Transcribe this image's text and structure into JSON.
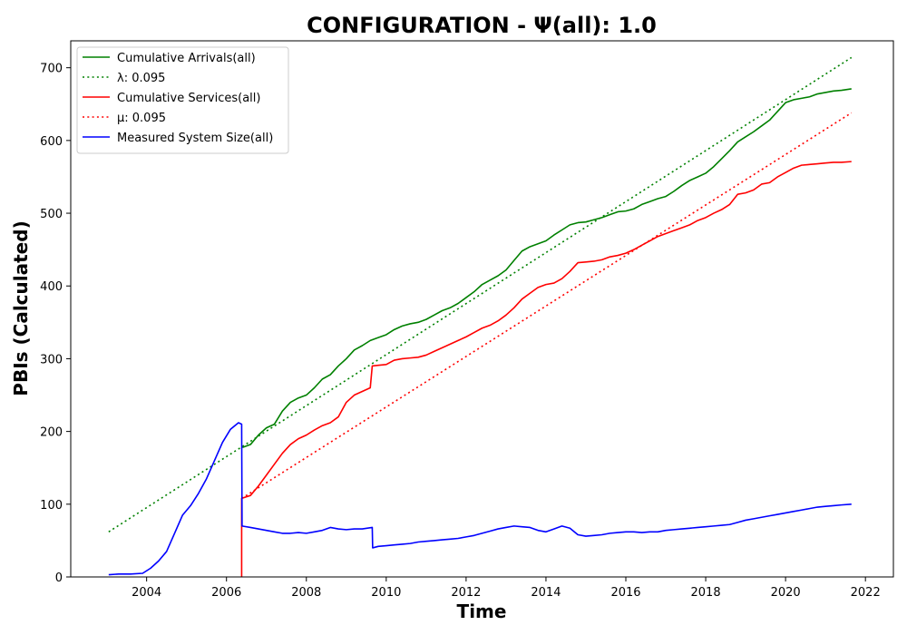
{
  "chart_data": {
    "type": "line",
    "title": "CONFIGURATION -  Ψ(all): 1.0",
    "xlabel": "Time",
    "ylabel": "PBIs (Calculated)",
    "xlim": [
      2002.1,
      2022.7
    ],
    "ylim": [
      0,
      737
    ],
    "x_ticks": [
      2004,
      2006,
      2008,
      2010,
      2012,
      2014,
      2016,
      2018,
      2020,
      2022
    ],
    "y_ticks": [
      0,
      100,
      200,
      300,
      400,
      500,
      600,
      700
    ],
    "grid": false,
    "legend_position": "top-left",
    "series": [
      {
        "name": "Cumulative Arrivals(all)",
        "color": "#008000",
        "style": "solid",
        "points": [
          [
            2006.4,
            178
          ],
          [
            2006.6,
            182
          ],
          [
            2006.8,
            195
          ],
          [
            2007.0,
            205
          ],
          [
            2007.2,
            210
          ],
          [
            2007.4,
            228
          ],
          [
            2007.6,
            240
          ],
          [
            2007.8,
            246
          ],
          [
            2008.0,
            250
          ],
          [
            2008.2,
            260
          ],
          [
            2008.4,
            272
          ],
          [
            2008.6,
            278
          ],
          [
            2008.8,
            290
          ],
          [
            2009.0,
            300
          ],
          [
            2009.2,
            312
          ],
          [
            2009.4,
            318
          ],
          [
            2009.6,
            325
          ],
          [
            2009.8,
            329
          ],
          [
            2010.0,
            333
          ],
          [
            2010.2,
            340
          ],
          [
            2010.4,
            345
          ],
          [
            2010.6,
            348
          ],
          [
            2010.8,
            350
          ],
          [
            2011.0,
            354
          ],
          [
            2011.2,
            360
          ],
          [
            2011.4,
            366
          ],
          [
            2011.6,
            370
          ],
          [
            2011.8,
            376
          ],
          [
            2012.0,
            384
          ],
          [
            2012.2,
            392
          ],
          [
            2012.4,
            402
          ],
          [
            2012.6,
            408
          ],
          [
            2012.8,
            414
          ],
          [
            2013.0,
            422
          ],
          [
            2013.2,
            435
          ],
          [
            2013.4,
            448
          ],
          [
            2013.6,
            454
          ],
          [
            2013.8,
            458
          ],
          [
            2014.0,
            462
          ],
          [
            2014.2,
            470
          ],
          [
            2014.4,
            477
          ],
          [
            2014.6,
            484
          ],
          [
            2014.8,
            487
          ],
          [
            2015.0,
            488
          ],
          [
            2015.2,
            491
          ],
          [
            2015.4,
            494
          ],
          [
            2015.6,
            498
          ],
          [
            2015.8,
            502
          ],
          [
            2016.0,
            503
          ],
          [
            2016.2,
            506
          ],
          [
            2016.4,
            512
          ],
          [
            2016.6,
            516
          ],
          [
            2016.8,
            520
          ],
          [
            2017.0,
            523
          ],
          [
            2017.2,
            530
          ],
          [
            2017.4,
            538
          ],
          [
            2017.6,
            545
          ],
          [
            2017.8,
            550
          ],
          [
            2018.0,
            555
          ],
          [
            2018.2,
            564
          ],
          [
            2018.4,
            575
          ],
          [
            2018.6,
            586
          ],
          [
            2018.8,
            598
          ],
          [
            2019.0,
            605
          ],
          [
            2019.2,
            612
          ],
          [
            2019.4,
            620
          ],
          [
            2019.6,
            628
          ],
          [
            2019.8,
            640
          ],
          [
            2020.0,
            652
          ],
          [
            2020.2,
            656
          ],
          [
            2020.4,
            658
          ],
          [
            2020.6,
            660
          ],
          [
            2020.8,
            664
          ],
          [
            2021.0,
            666
          ],
          [
            2021.2,
            668
          ],
          [
            2021.4,
            669
          ],
          [
            2021.65,
            671
          ]
        ]
      },
      {
        "name": "λ: 0.095",
        "color": "#008000",
        "style": "dotted",
        "points": [
          [
            2003.05,
            62
          ],
          [
            2021.65,
            714
          ]
        ]
      },
      {
        "name": "Cumulative Services(all)",
        "color": "#ff0000",
        "style": "solid",
        "points": [
          [
            2006.38,
            0
          ],
          [
            2006.38,
            108
          ],
          [
            2006.6,
            112
          ],
          [
            2006.8,
            125
          ],
          [
            2007.0,
            140
          ],
          [
            2007.2,
            155
          ],
          [
            2007.4,
            170
          ],
          [
            2007.6,
            182
          ],
          [
            2007.8,
            190
          ],
          [
            2008.0,
            195
          ],
          [
            2008.2,
            202
          ],
          [
            2008.4,
            208
          ],
          [
            2008.6,
            212
          ],
          [
            2008.8,
            220
          ],
          [
            2009.0,
            240
          ],
          [
            2009.2,
            250
          ],
          [
            2009.4,
            255
          ],
          [
            2009.6,
            260
          ],
          [
            2009.65,
            290
          ],
          [
            2009.8,
            291
          ],
          [
            2010.0,
            292
          ],
          [
            2010.2,
            298
          ],
          [
            2010.4,
            300
          ],
          [
            2010.6,
            301
          ],
          [
            2010.8,
            302
          ],
          [
            2011.0,
            305
          ],
          [
            2011.2,
            310
          ],
          [
            2011.4,
            315
          ],
          [
            2011.6,
            320
          ],
          [
            2011.8,
            325
          ],
          [
            2012.0,
            330
          ],
          [
            2012.2,
            336
          ],
          [
            2012.4,
            342
          ],
          [
            2012.6,
            346
          ],
          [
            2012.8,
            352
          ],
          [
            2013.0,
            360
          ],
          [
            2013.2,
            370
          ],
          [
            2013.4,
            382
          ],
          [
            2013.6,
            390
          ],
          [
            2013.8,
            398
          ],
          [
            2014.0,
            402
          ],
          [
            2014.2,
            404
          ],
          [
            2014.4,
            410
          ],
          [
            2014.6,
            420
          ],
          [
            2014.8,
            432
          ],
          [
            2015.0,
            433
          ],
          [
            2015.2,
            434
          ],
          [
            2015.4,
            436
          ],
          [
            2015.6,
            440
          ],
          [
            2015.8,
            442
          ],
          [
            2016.0,
            445
          ],
          [
            2016.2,
            450
          ],
          [
            2016.4,
            456
          ],
          [
            2016.6,
            462
          ],
          [
            2016.8,
            468
          ],
          [
            2017.0,
            472
          ],
          [
            2017.2,
            476
          ],
          [
            2017.4,
            480
          ],
          [
            2017.6,
            484
          ],
          [
            2017.8,
            490
          ],
          [
            2018.0,
            494
          ],
          [
            2018.2,
            500
          ],
          [
            2018.4,
            505
          ],
          [
            2018.6,
            512
          ],
          [
            2018.8,
            526
          ],
          [
            2019.0,
            528
          ],
          [
            2019.2,
            532
          ],
          [
            2019.4,
            540
          ],
          [
            2019.6,
            542
          ],
          [
            2019.8,
            550
          ],
          [
            2020.0,
            556
          ],
          [
            2020.2,
            562
          ],
          [
            2020.4,
            566
          ],
          [
            2020.6,
            567
          ],
          [
            2020.8,
            568
          ],
          [
            2021.0,
            569
          ],
          [
            2021.2,
            570
          ],
          [
            2021.4,
            570
          ],
          [
            2021.65,
            571
          ]
        ]
      },
      {
        "name": "μ: 0.095",
        "color": "#ff0000",
        "style": "dotted",
        "points": [
          [
            2006.38,
            108
          ],
          [
            2021.65,
            638
          ]
        ]
      },
      {
        "name": "Measured System Size(all)",
        "color": "#0000ff",
        "style": "solid",
        "points": [
          [
            2003.05,
            3
          ],
          [
            2003.3,
            4
          ],
          [
            2003.6,
            4
          ],
          [
            2003.9,
            5
          ],
          [
            2004.1,
            12
          ],
          [
            2004.3,
            22
          ],
          [
            2004.5,
            35
          ],
          [
            2004.7,
            60
          ],
          [
            2004.9,
            85
          ],
          [
            2005.1,
            98
          ],
          [
            2005.3,
            115
          ],
          [
            2005.5,
            135
          ],
          [
            2005.7,
            160
          ],
          [
            2005.9,
            185
          ],
          [
            2006.1,
            203
          ],
          [
            2006.3,
            212
          ],
          [
            2006.38,
            210
          ],
          [
            2006.39,
            70
          ],
          [
            2006.6,
            68
          ],
          [
            2006.8,
            66
          ],
          [
            2007.0,
            64
          ],
          [
            2007.2,
            62
          ],
          [
            2007.4,
            60
          ],
          [
            2007.6,
            60
          ],
          [
            2007.8,
            61
          ],
          [
            2008.0,
            60
          ],
          [
            2008.2,
            62
          ],
          [
            2008.4,
            64
          ],
          [
            2008.6,
            68
          ],
          [
            2008.8,
            66
          ],
          [
            2009.0,
            65
          ],
          [
            2009.2,
            66
          ],
          [
            2009.4,
            66
          ],
          [
            2009.65,
            68
          ],
          [
            2009.66,
            40
          ],
          [
            2009.8,
            42
          ],
          [
            2010.0,
            43
          ],
          [
            2010.2,
            44
          ],
          [
            2010.4,
            45
          ],
          [
            2010.6,
            46
          ],
          [
            2010.8,
            48
          ],
          [
            2011.0,
            49
          ],
          [
            2011.2,
            50
          ],
          [
            2011.4,
            51
          ],
          [
            2011.6,
            52
          ],
          [
            2011.8,
            53
          ],
          [
            2012.0,
            55
          ],
          [
            2012.2,
            57
          ],
          [
            2012.4,
            60
          ],
          [
            2012.6,
            63
          ],
          [
            2012.8,
            66
          ],
          [
            2013.0,
            68
          ],
          [
            2013.2,
            70
          ],
          [
            2013.4,
            69
          ],
          [
            2013.6,
            68
          ],
          [
            2013.8,
            64
          ],
          [
            2014.0,
            62
          ],
          [
            2014.2,
            66
          ],
          [
            2014.4,
            70
          ],
          [
            2014.6,
            67
          ],
          [
            2014.8,
            58
          ],
          [
            2015.0,
            56
          ],
          [
            2015.2,
            57
          ],
          [
            2015.4,
            58
          ],
          [
            2015.6,
            60
          ],
          [
            2015.8,
            61
          ],
          [
            2016.0,
            62
          ],
          [
            2016.2,
            62
          ],
          [
            2016.4,
            61
          ],
          [
            2016.6,
            62
          ],
          [
            2016.8,
            62
          ],
          [
            2017.0,
            64
          ],
          [
            2017.2,
            65
          ],
          [
            2017.4,
            66
          ],
          [
            2017.6,
            67
          ],
          [
            2017.8,
            68
          ],
          [
            2018.0,
            69
          ],
          [
            2018.2,
            70
          ],
          [
            2018.4,
            71
          ],
          [
            2018.6,
            72
          ],
          [
            2018.8,
            75
          ],
          [
            2019.0,
            78
          ],
          [
            2019.2,
            80
          ],
          [
            2019.4,
            82
          ],
          [
            2019.6,
            84
          ],
          [
            2019.8,
            86
          ],
          [
            2020.0,
            88
          ],
          [
            2020.2,
            90
          ],
          [
            2020.4,
            92
          ],
          [
            2020.6,
            94
          ],
          [
            2020.8,
            96
          ],
          [
            2021.0,
            97
          ],
          [
            2021.2,
            98
          ],
          [
            2021.4,
            99
          ],
          [
            2021.65,
            100
          ]
        ]
      }
    ]
  }
}
